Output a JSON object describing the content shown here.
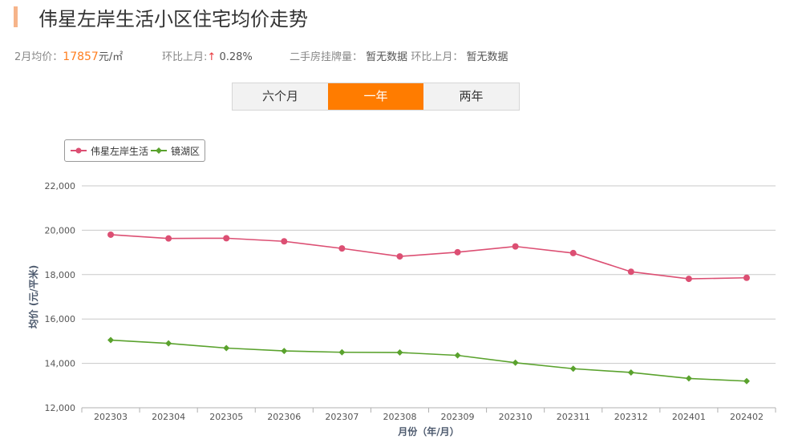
{
  "header": {
    "title": "伟星左岸生活小区住宅均价走势"
  },
  "info": {
    "avg_label": "2月均价：",
    "avg_value": "17857",
    "avg_unit": "元/㎡",
    "mom_label": "环比上月:",
    "mom_arrow": "↑",
    "mom_value": "0.28%",
    "listing_label": "二手房挂牌量：",
    "listing_value": "暂无数据",
    "listing_mom_label": "环比上月：",
    "listing_mom_value": "暂无数据"
  },
  "tabs": [
    {
      "label": "六个月",
      "active": false
    },
    {
      "label": "一年",
      "active": true
    },
    {
      "label": "两年",
      "active": false
    }
  ],
  "colors": {
    "accent": "#ff7c00",
    "series1": "#dc4f73",
    "series2": "#5aa22d"
  },
  "chart_data": {
    "type": "line",
    "categories": [
      "202303",
      "202304",
      "202305",
      "202306",
      "202307",
      "202308",
      "202309",
      "202310",
      "202311",
      "202312",
      "202401",
      "202402"
    ],
    "series": [
      {
        "name": "伟星左岸生活",
        "color": "#dc4f73",
        "marker": "circle",
        "values": [
          19800,
          19630,
          19640,
          19500,
          19180,
          18820,
          19010,
          19270,
          18970,
          18130,
          17810,
          17857
        ]
      },
      {
        "name": "镜湖区",
        "color": "#5aa22d",
        "marker": "diamond",
        "values": [
          15050,
          14900,
          14690,
          14560,
          14500,
          14490,
          14360,
          14030,
          13760,
          13590,
          13320,
          13200
        ]
      }
    ],
    "ylim": [
      12000,
      22000
    ],
    "yticks": [
      "12,000",
      "14,000",
      "16,000",
      "18,000",
      "20,000",
      "22,000"
    ],
    "ylabel": "均价 (元/平米)",
    "xlabel": "月份（年/月）",
    "grid": true,
    "legend_position": "top-left"
  }
}
